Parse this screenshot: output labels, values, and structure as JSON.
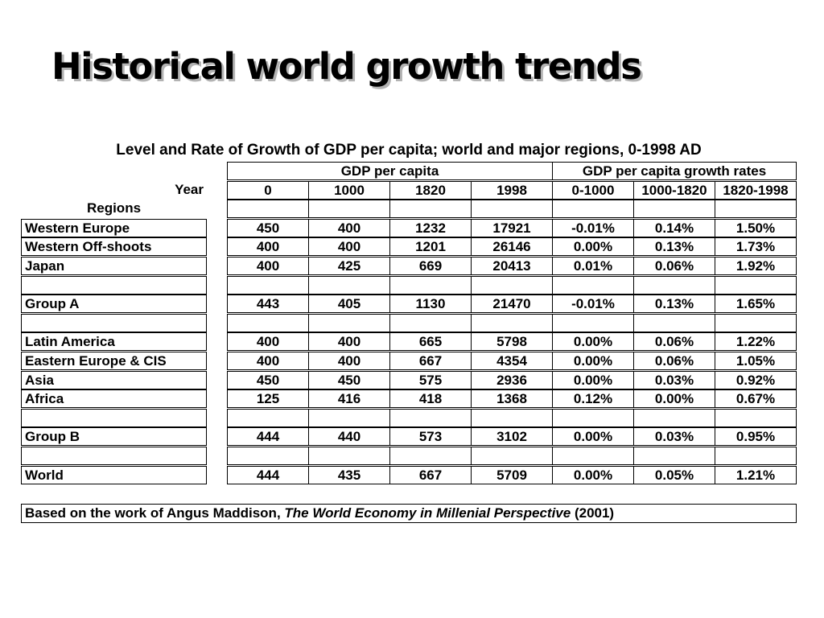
{
  "title": "Historical world growth trends",
  "caption": "Level and Rate of Growth of GDP per capita; world and major regions, 0-1998 AD",
  "header": {
    "gdp_label": "GDP per capita",
    "growth_label": "GDP per capita growth rates",
    "year_label": "Year",
    "regions_label": "Regions",
    "years": [
      "0",
      "1000",
      "1820",
      "1998",
      "0-1000",
      "1000-1820",
      "1820-1998"
    ]
  },
  "rows": [
    {
      "region": "Western Europe",
      "values": [
        "450",
        "400",
        "1232",
        "17921",
        "-0.01%",
        "0.14%",
        "1.50%"
      ]
    },
    {
      "region": "Western Off-shoots",
      "values": [
        "400",
        "400",
        "1201",
        "26146",
        "0.00%",
        "0.13%",
        "1.73%"
      ]
    },
    {
      "region": "Japan",
      "values": [
        "400",
        "425",
        "669",
        "20413",
        "0.01%",
        "0.06%",
        "1.92%"
      ]
    },
    {
      "region": "",
      "values": [
        "",
        "",
        "",
        "",
        "",
        "",
        ""
      ]
    },
    {
      "region": "Group A",
      "values": [
        "443",
        "405",
        "1130",
        "21470",
        "-0.01%",
        "0.13%",
        "1.65%"
      ]
    },
    {
      "region": "",
      "values": [
        "",
        "",
        "",
        "",
        "",
        "",
        ""
      ]
    },
    {
      "region": "Latin America",
      "values": [
        "400",
        "400",
        "665",
        "5798",
        "0.00%",
        "0.06%",
        "1.22%"
      ]
    },
    {
      "region": "Eastern Europe & CIS",
      "values": [
        "400",
        "400",
        "667",
        "4354",
        "0.00%",
        "0.06%",
        "1.05%"
      ]
    },
    {
      "region": "Asia",
      "values": [
        "450",
        "450",
        "575",
        "2936",
        "0.00%",
        "0.03%",
        "0.92%"
      ]
    },
    {
      "region": "Africa",
      "values": [
        "125",
        "416",
        "418",
        "1368",
        "0.12%",
        "0.00%",
        "0.67%"
      ]
    },
    {
      "region": "",
      "values": [
        "",
        "",
        "",
        "",
        "",
        "",
        ""
      ]
    },
    {
      "region": "Group B",
      "values": [
        "444",
        "440",
        "573",
        "3102",
        "0.00%",
        "0.03%",
        "0.95%"
      ]
    },
    {
      "region": "",
      "values": [
        "",
        "",
        "",
        "",
        "",
        "",
        ""
      ]
    },
    {
      "region": "World",
      "values": [
        "444",
        "435",
        "667",
        "5709",
        "0.00%",
        "0.05%",
        "1.21%"
      ]
    }
  ],
  "source": {
    "prefix": "Based on the work of Angus Maddison, ",
    "book": "The World Economy in Millenial Perspective",
    "suffix": " (2001)"
  }
}
